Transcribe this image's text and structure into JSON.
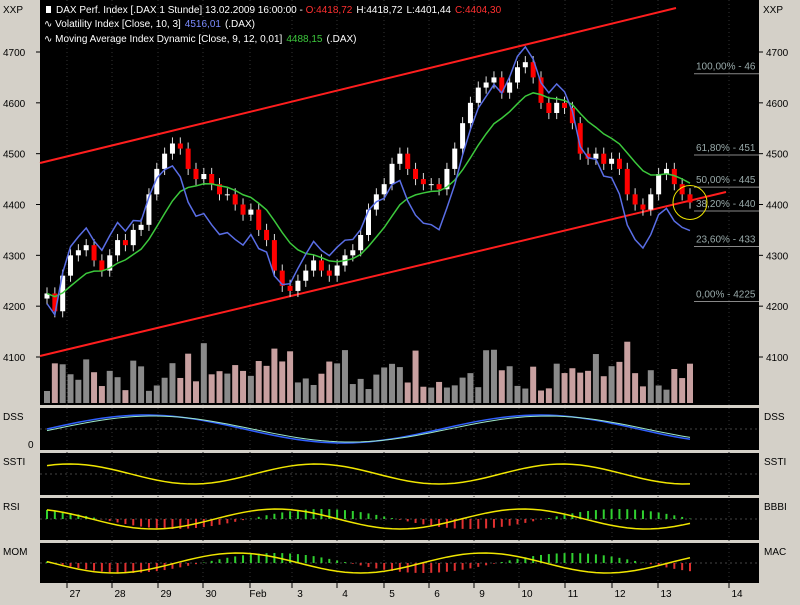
{
  "header": {
    "title_line": "DAX Perf. Index [.DAX  1 Stunde] 13.02.2009 16:00:00 - ",
    "open": "O:4418,72",
    "high": "H:4418,72",
    "low": "L:4401,44",
    "close": "C:4404,30",
    "vol_label": "Volatility Index [Close, 10, 3]",
    "vol_value": "4516,01",
    "vol_suffix": "(.DAX)",
    "ma_label": "Moving Average Index Dynamic [Close, 9, 12, 0,01]",
    "ma_value": "4488,15",
    "ma_suffix": "(.DAX)",
    "left_unit": "XXP",
    "right_unit": "XXP"
  },
  "chart_data": {
    "type": "candlestick",
    "y_ticks": [
      "4700",
      "4600",
      "4500",
      "4400",
      "4300",
      "4200",
      "4100"
    ],
    "ylim": [
      4040,
      4760
    ],
    "x_ticks": [
      "27",
      "28",
      "29",
      "30",
      "Feb",
      "3",
      "4",
      "5",
      "6",
      "9",
      "10",
      "11",
      "12",
      "13",
      "14"
    ],
    "fib_levels": [
      {
        "label": "100,00% - 46",
        "value": 4673
      },
      {
        "label": "61,80% - 451",
        "value": 4513
      },
      {
        "label": "50,00% - 445",
        "value": 4450
      },
      {
        "label": "38,20% - 440",
        "value": 4403
      },
      {
        "label": "23,60% - 433",
        "value": 4333
      },
      {
        "label": "0,00% - 4225",
        "value": 4225
      }
    ],
    "subpanels": [
      {
        "left": "DSS",
        "right": "DSS",
        "zero": "0"
      },
      {
        "left": "SSTI",
        "right": "SSTI"
      },
      {
        "left": "RSI",
        "right": "BBBI"
      },
      {
        "left": "MOM",
        "right": "MAC"
      }
    ],
    "colors": {
      "up": "#ffffff",
      "down": "#ff0000",
      "ma": "#3cc83c",
      "vol": "#5a6ee6",
      "channel": "#ff1e1e",
      "yellow": "#f0e600"
    },
    "closes": [
      4225,
      4190,
      4260,
      4300,
      4310,
      4320,
      4290,
      4270,
      4300,
      4330,
      4320,
      4350,
      4360,
      4420,
      4470,
      4500,
      4520,
      4510,
      4470,
      4450,
      4460,
      4440,
      4420,
      4420,
      4400,
      4380,
      4390,
      4350,
      4330,
      4270,
      4240,
      4230,
      4250,
      4270,
      4290,
      4270,
      4260,
      4280,
      4300,
      4310,
      4340,
      4390,
      4420,
      4440,
      4480,
      4500,
      4470,
      4450,
      4440,
      4440,
      4430,
      4470,
      4510,
      4560,
      4600,
      4630,
      4640,
      4650,
      4620,
      4640,
      4670,
      4680,
      4650,
      4600,
      4580,
      4600,
      4590,
      4560,
      4500,
      4490,
      4500,
      4480,
      4490,
      4470,
      4420,
      4400,
      4390,
      4420,
      4460,
      4470,
      4440,
      4420,
      4404
    ]
  }
}
